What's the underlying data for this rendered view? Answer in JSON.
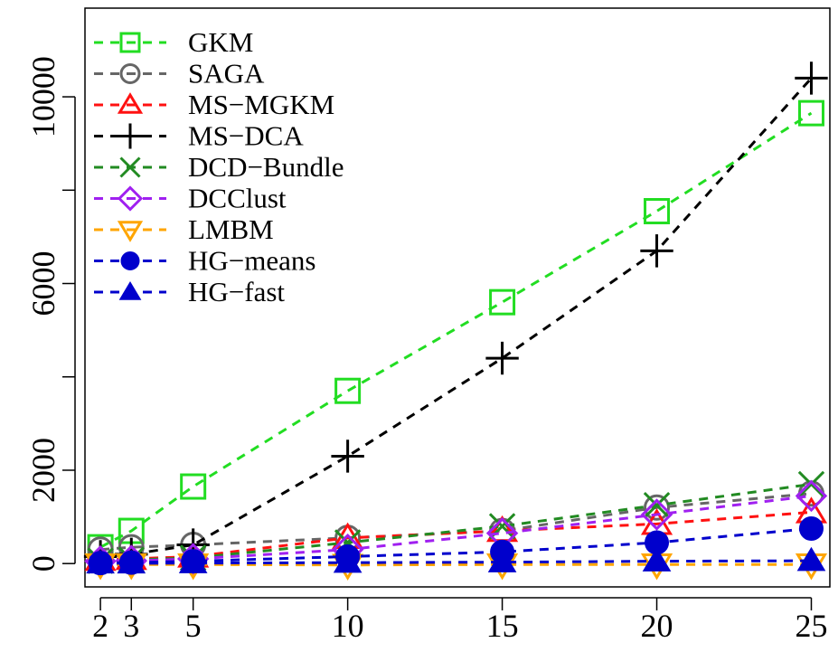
{
  "chart_data": {
    "type": "line",
    "title": "",
    "xlabel": "",
    "ylabel": "",
    "x": [
      2,
      3,
      5,
      10,
      15,
      20,
      25
    ],
    "x_ticks": [
      "2",
      "3",
      "5",
      "10",
      "15",
      "20",
      "25"
    ],
    "y_ticks": [
      "0",
      "2000",
      "6000",
      "10000"
    ],
    "xlim": [
      1.5,
      25.6
    ],
    "ylim": [
      -500,
      11900
    ],
    "grid": false,
    "legend_position": "top-left",
    "series": [
      {
        "name": "GKM",
        "color": "#22dd22",
        "marker": "square-open",
        "values": [
          350,
          700,
          1650,
          3700,
          5600,
          7550,
          9650
        ]
      },
      {
        "name": "SAGA",
        "color": "#666666",
        "marker": "circle-open",
        "values": [
          300,
          350,
          400,
          550,
          700,
          1200,
          1500
        ]
      },
      {
        "name": "MS−MGKM",
        "color": "#ff1111",
        "marker": "triangle-up-open",
        "values": [
          80,
          100,
          150,
          550,
          700,
          850,
          1100
        ]
      },
      {
        "name": "MS−DCA",
        "color": "#000000",
        "marker": "plus",
        "values": [
          150,
          200,
          400,
          2300,
          4400,
          6700,
          10400
        ]
      },
      {
        "name": "DCD−Bundle",
        "color": "#228b22",
        "marker": "x",
        "values": [
          60,
          80,
          120,
          450,
          800,
          1250,
          1700
        ]
      },
      {
        "name": "DCClust",
        "color": "#a020f0",
        "marker": "diamond-open",
        "values": [
          50,
          60,
          100,
          300,
          650,
          1050,
          1450
        ]
      },
      {
        "name": "LMBM",
        "color": "#ffa500",
        "marker": "triangle-down-open",
        "values": [
          -20,
          -20,
          -20,
          -30,
          -20,
          -20,
          -20
        ]
      },
      {
        "name": "HG−means",
        "color": "#0000cc",
        "marker": "circle-filled",
        "values": [
          10,
          20,
          50,
          150,
          250,
          450,
          750
        ]
      },
      {
        "name": "HG−fast",
        "color": "#0000cc",
        "marker": "triangle-up-filled",
        "values": [
          5,
          5,
          10,
          20,
          30,
          50,
          60
        ]
      }
    ]
  }
}
